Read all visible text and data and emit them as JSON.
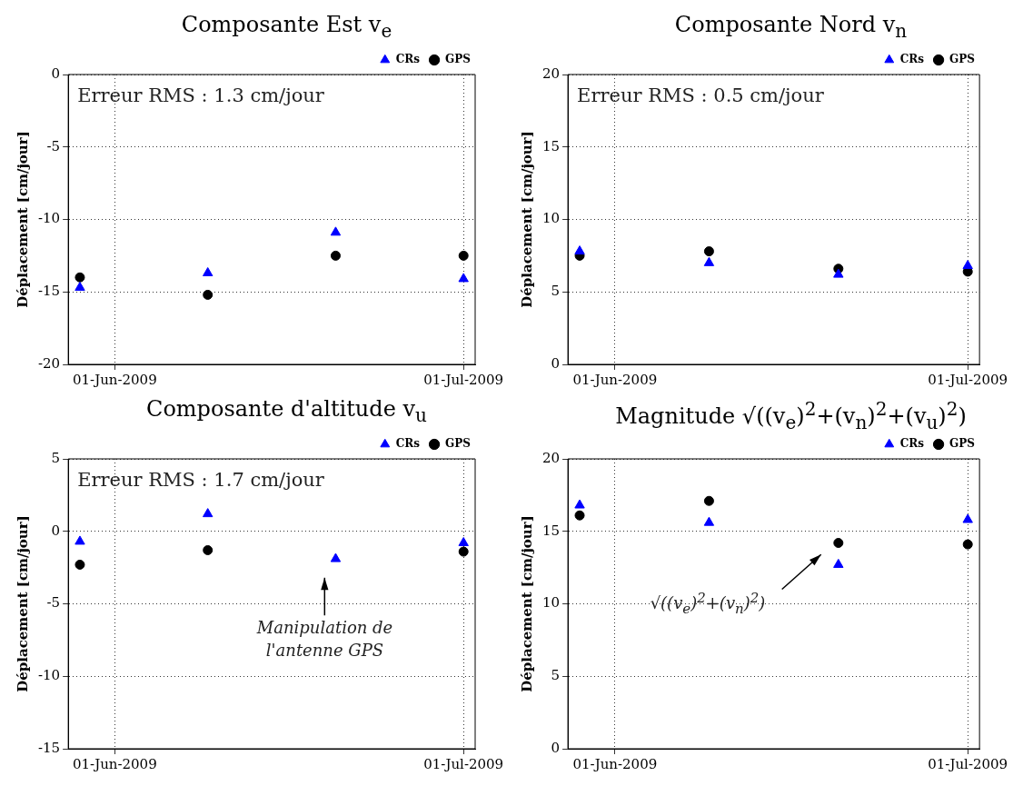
{
  "chart_data": [
    {
      "type": "scatter",
      "title": "Composante Est v$_{e}$",
      "ylabel": "Déplacement [cm/jour]",
      "x": [
        "2009-05-29",
        "2009-06-09",
        "2009-06-20",
        "2009-07-01"
      ],
      "xlim": [
        "2009-05-28",
        "2009-07-02"
      ],
      "xticks": [
        {
          "value": "2009-06-01",
          "label": "01-Jun-2009"
        },
        {
          "value": "2009-07-01",
          "label": "01-Jul-2009"
        }
      ],
      "ylim": [
        -20,
        0
      ],
      "yticks": [
        -20,
        -15,
        -10,
        -5,
        0
      ],
      "grid": true,
      "legend": "top right",
      "annotations": [
        "Erreur RMS : 1.3 cm/jour"
      ],
      "series": [
        {
          "name": "CRs",
          "color": "#0000ff",
          "marker": "triangle",
          "values": [
            -14.7,
            -13.7,
            -10.9,
            -14.1
          ]
        },
        {
          "name": "GPS",
          "color": "#000000",
          "marker": "circle",
          "values": [
            -14.0,
            -15.2,
            -12.5,
            -12.5
          ]
        }
      ]
    },
    {
      "type": "scatter",
      "title": "Composante Nord v$_{n}$",
      "ylabel": "Déplacement [cm/jour]",
      "x": [
        "2009-05-29",
        "2009-06-09",
        "2009-06-20",
        "2009-07-01"
      ],
      "xlim": [
        "2009-05-28",
        "2009-07-02"
      ],
      "xticks": [
        {
          "value": "2009-06-01",
          "label": "01-Jun-2009"
        },
        {
          "value": "2009-07-01",
          "label": "01-Jul-2009"
        }
      ],
      "ylim": [
        0,
        20
      ],
      "yticks": [
        0,
        5,
        10,
        15,
        20
      ],
      "grid": true,
      "legend": "top right",
      "annotations": [
        "Erreur RMS : 0.5 cm/jour"
      ],
      "series": [
        {
          "name": "CRs",
          "color": "#0000ff",
          "marker": "triangle",
          "values": [
            7.8,
            7.0,
            6.2,
            6.8
          ]
        },
        {
          "name": "GPS",
          "color": "#000000",
          "marker": "circle",
          "values": [
            7.5,
            7.8,
            6.6,
            6.4
          ]
        }
      ]
    },
    {
      "type": "scatter",
      "title": "Composante d'altitude v$_{u}$",
      "ylabel": "Déplacement [cm/jour]",
      "x": [
        "2009-05-29",
        "2009-06-09",
        "2009-06-20",
        "2009-07-01"
      ],
      "xlim": [
        "2009-05-28",
        "2009-07-02"
      ],
      "xticks": [
        {
          "value": "2009-06-01",
          "label": "01-Jun-2009"
        },
        {
          "value": "2009-07-01",
          "label": "01-Jul-2009"
        }
      ],
      "ylim": [
        -15,
        5
      ],
      "yticks": [
        -15,
        -10,
        -5,
        0,
        5
      ],
      "grid": true,
      "legend": "top right",
      "annotations": [
        "Erreur RMS : 1.7 cm/jour",
        "Manipulation de\nl'antenne GPS"
      ],
      "series": [
        {
          "name": "CRs",
          "color": "#0000ff",
          "marker": "triangle",
          "values": [
            -0.7,
            1.2,
            -1.9,
            -0.8
          ]
        },
        {
          "name": "GPS",
          "color": "#000000",
          "marker": "circle",
          "values": [
            -2.3,
            -1.3,
            null,
            -1.4
          ]
        }
      ]
    },
    {
      "type": "scatter",
      "title": "Magnitude √((v$_{e}$)$^{2}$+(v$_{n}$)$^{2}$+(v$_{u}$)$^{2}$)",
      "ylabel": "Déplacement [cm/jour]",
      "x": [
        "2009-05-29",
        "2009-06-09",
        "2009-06-20",
        "2009-07-01"
      ],
      "xlim": [
        "2009-05-28",
        "2009-07-02"
      ],
      "xticks": [
        {
          "value": "2009-06-01",
          "label": "01-Jun-2009"
        },
        {
          "value": "2009-07-01",
          "label": "01-Jul-2009"
        }
      ],
      "ylim": [
        0,
        20
      ],
      "yticks": [
        0,
        5,
        10,
        15,
        20
      ],
      "grid": true,
      "legend": "top right",
      "annotations": [
        "√((v$_{e}$)$^{2}$+(v$_{n}$)$^{2}$)"
      ],
      "series": [
        {
          "name": "CRs",
          "color": "#0000ff",
          "marker": "triangle",
          "values": [
            16.8,
            15.6,
            12.7,
            15.8
          ]
        },
        {
          "name": "GPS",
          "color": "#000000",
          "marker": "circle",
          "values": [
            16.1,
            17.1,
            14.2,
            14.1
          ]
        }
      ]
    }
  ]
}
